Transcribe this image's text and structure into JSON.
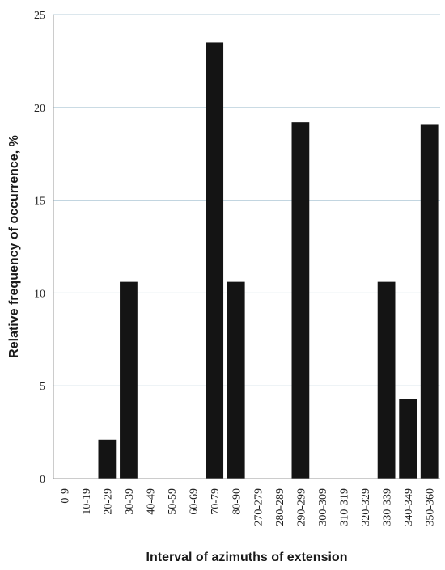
{
  "chart_data": {
    "type": "bar",
    "title": "",
    "xlabel": "Interval of azimuths of extension",
    "ylabel": "Relative frequency of occurrence, %",
    "ylim": [
      0,
      25
    ],
    "yticks": [
      0,
      5,
      10,
      15,
      20,
      25
    ],
    "grid": true,
    "categories": [
      "0-9",
      "10-19",
      "20-29",
      "30-39",
      "40-49",
      "50-59",
      "60-69",
      "70-79",
      "80-90",
      "270-279",
      "280-289",
      "290-299",
      "300-309",
      "310-319",
      "320-329",
      "330-339",
      "340-349",
      "350-360"
    ],
    "values": [
      0,
      0,
      2.1,
      10.6,
      0,
      0,
      0,
      23.5,
      10.6,
      0,
      0,
      19.2,
      0,
      0,
      0,
      10.6,
      4.3,
      19.1
    ],
    "colors": {
      "bar": "#141414",
      "grid": "#b9cfdb",
      "axis": "#999999"
    }
  }
}
